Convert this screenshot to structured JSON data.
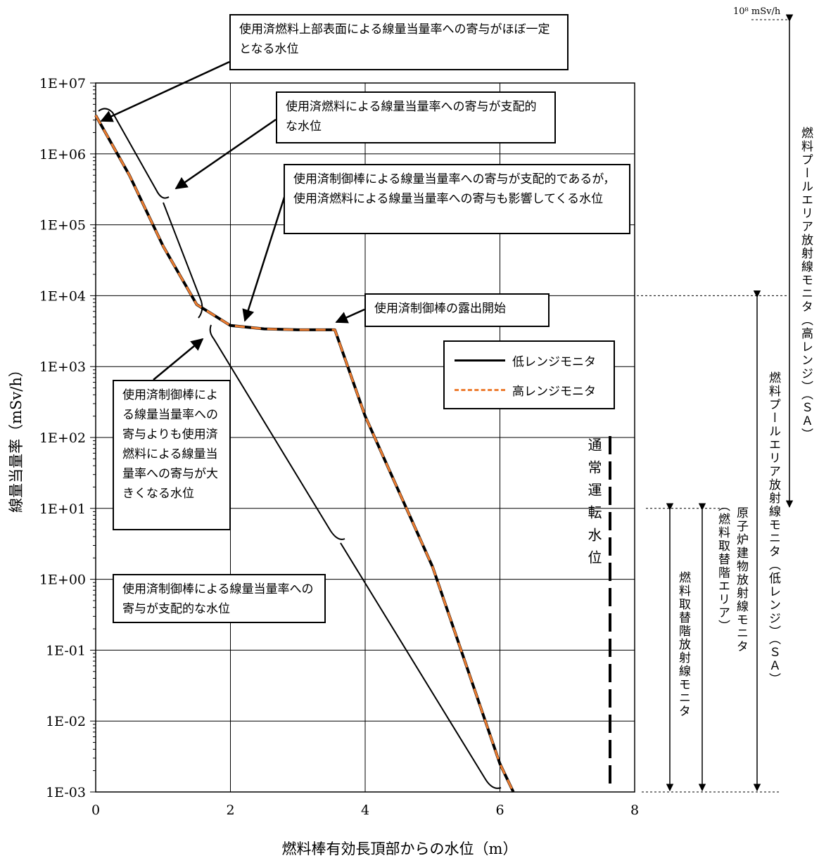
{
  "chart_data": {
    "type": "line",
    "xlabel": "燃料棒有効長頂部からの水位（m）",
    "ylabel": "線量当量率（mSv/h）",
    "xlim": [
      0,
      8
    ],
    "ylim": [
      0.001,
      10000000
    ],
    "yscale": "log",
    "xticks": [
      "0",
      "2",
      "4",
      "6",
      "8"
    ],
    "yticks": [
      "1E-03",
      "1E-02",
      "1E-01",
      "1E+00",
      "1E+01",
      "1E+02",
      "1E+03",
      "1E+04",
      "1E+05",
      "1E+06",
      "1E+07"
    ],
    "grid": true,
    "series": [
      {
        "name": "低レンジモニタ",
        "color": "#000000",
        "style": "solid",
        "x": [
          0,
          0.5,
          1.0,
          1.5,
          2.0,
          2.5,
          3.0,
          3.55,
          4.0,
          5.0,
          6.0,
          6.2
        ],
        "y": [
          3500000,
          500000,
          50000,
          7500,
          3800,
          3400,
          3300,
          3300,
          200,
          1.5,
          0.0025,
          0.001
        ]
      },
      {
        "name": "高レンジモニタ",
        "color": "#ed7d31",
        "style": "dashed",
        "x": [
          0,
          0.5,
          1.0,
          1.5,
          2.0,
          2.5,
          3.0,
          3.55,
          4.0,
          5.0,
          6.0,
          6.2
        ],
        "y": [
          3500000,
          500000,
          50000,
          7500,
          3800,
          3400,
          3300,
          3300,
          200,
          1.5,
          0.0025,
          0.001
        ]
      }
    ],
    "legend_position": "right-middle",
    "annotations": {
      "top_label": "10⁸ mSv/h",
      "normal_level": "通常運転水位",
      "callouts": [
        "使用済燃料上部表面による線量当量率への寄与がほぼ一定となる水位",
        "使用済燃料による線量当量率への寄与が支配的な水位",
        "使用済制御棒による線量当量率への寄与が支配的であるが，使用済燃料による線量当量率への寄与も影響してくる水位",
        "使用済制御棒の露出開始",
        "使用済制御棒による線量当量率への寄与よりも使用済燃料による線量当量率への寄与が大きくなる水位",
        "使用済制御棒による線量当量率への寄与が支配的な水位"
      ],
      "ranges": [
        "燃料プールエリア放射線モニタ（高レンジ）（ＳＡ）",
        "燃料プールエリア放射線モニタ（低レンジ）（ＳＡ）",
        "原子炉建物放射線モニタ",
        "（燃料取替階エリア）",
        "燃料取替階放射線モニタ"
      ]
    }
  }
}
